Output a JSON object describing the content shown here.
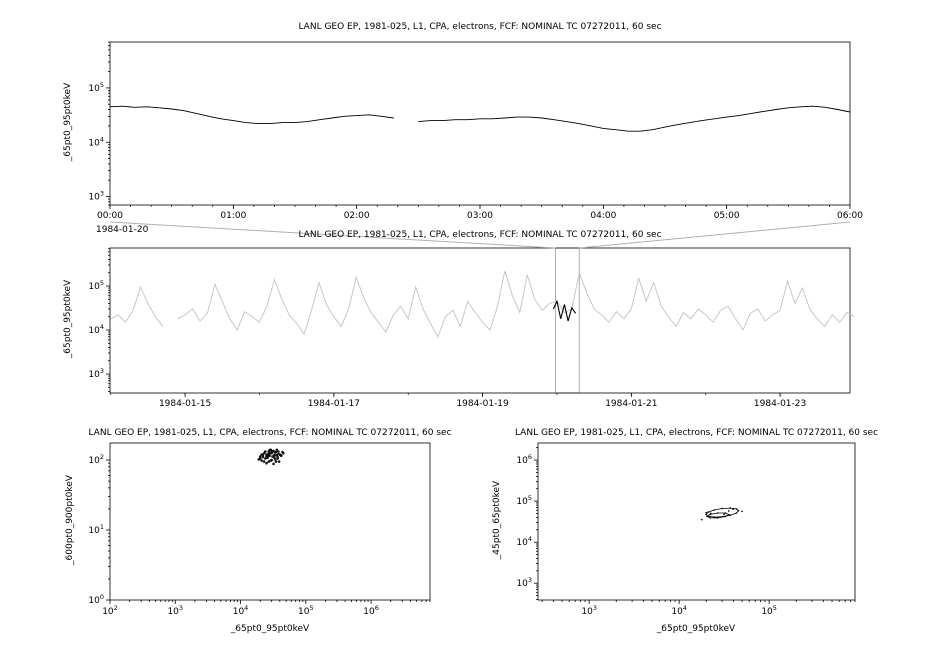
{
  "window": {
    "background": "#ffffff"
  },
  "chart_data": [
    {
      "id": "top-zoom-timeseries",
      "type": "line",
      "title": "LANL GEO EP, 1981-025, L1, CPA, electrons, FCF: NOMINAL TC 07272011, 60 sec",
      "ylabel": "_65pt0_95pt0keV",
      "x_date_label": "1984-01-20",
      "x_unit": "hours",
      "xlim": [
        0,
        6
      ],
      "ylog": true,
      "ylim": [
        700,
        700000
      ],
      "y_tick_exponents": [
        3,
        4,
        5
      ],
      "x_ticks": [
        {
          "v": 0,
          "label": "00:00"
        },
        {
          "v": 1,
          "label": "01:00"
        },
        {
          "v": 2,
          "label": "02:00"
        },
        {
          "v": 3,
          "label": "03:00"
        },
        {
          "v": 4,
          "label": "04:00"
        },
        {
          "v": 5,
          "label": "05:00"
        },
        {
          "v": 6,
          "label": "06:00"
        }
      ],
      "x_minor_step": 0.1666667,
      "series_color": "#000000",
      "x_start": 0,
      "x_step": 0.1,
      "values": [
        45000,
        46000,
        44000,
        45000,
        43000,
        41000,
        38000,
        34000,
        30000,
        27000,
        25000,
        23000,
        22000,
        22000,
        23000,
        23000,
        24000,
        26000,
        28000,
        30000,
        31000,
        32000,
        30000,
        28000,
        null,
        24000,
        25000,
        25000,
        26000,
        26000,
        27000,
        27000,
        28000,
        29000,
        29000,
        28000,
        26000,
        24000,
        22000,
        20000,
        18000,
        17000,
        16000,
        16000,
        17000,
        19000,
        21000,
        23000,
        25000,
        27000,
        29000,
        31000,
        34000,
        37000,
        40000,
        43000,
        45000,
        46000,
        44000,
        40000,
        36000
      ]
    },
    {
      "id": "context-timeseries",
      "type": "line",
      "title": "LANL GEO EP, 1981-025, L1, CPA, electrons, FCF: NOMINAL TC 07272011, 60 sec",
      "ylabel": "_65pt0_95pt0keV",
      "x_unit": "days-of-1984-01",
      "xlim": [
        13.99,
        23.94
      ],
      "ylog": true,
      "ylim": [
        370,
        730000
      ],
      "y_tick_exponents": [
        3,
        4,
        5
      ],
      "x_ticks": [
        {
          "v": 15,
          "label": "1984-01-15"
        },
        {
          "v": 17,
          "label": "1984-01-17"
        },
        {
          "v": 19,
          "label": "1984-01-19"
        },
        {
          "v": 21,
          "label": "1984-01-21"
        },
        {
          "v": 23,
          "label": "1984-01-23"
        }
      ],
      "x_minor_step": 1,
      "series_color": "#c2c2c2",
      "box_color": "#b0b0b0",
      "zoom_box_x": [
        19.98,
        20.3
      ],
      "x_start": 14.0,
      "x_step": 0.1,
      "values": [
        18000,
        22000,
        15000,
        28000,
        95000,
        40000,
        20000,
        12000,
        null,
        18000,
        22000,
        30000,
        16000,
        24000,
        110000,
        45000,
        18000,
        10000,
        26000,
        20000,
        15000,
        35000,
        140000,
        50000,
        22000,
        14000,
        8000,
        28000,
        120000,
        38000,
        20000,
        12000,
        30000,
        160000,
        55000,
        25000,
        15000,
        9000,
        22000,
        35000,
        18000,
        95000,
        30000,
        14000,
        7000,
        20000,
        28000,
        12000,
        45000,
        25000,
        15000,
        10000,
        35000,
        220000,
        60000,
        25000,
        180000,
        50000,
        28000,
        40000,
        45000,
        25000,
        30000,
        200000,
        70000,
        30000,
        22000,
        15000,
        26000,
        18000,
        30000,
        150000,
        45000,
        120000,
        35000,
        20000,
        12000,
        25000,
        18000,
        30000,
        22000,
        15000,
        28000,
        35000,
        18000,
        10000,
        24000,
        30000,
        16000,
        22000,
        28000,
        130000,
        40000,
        90000,
        30000,
        18000,
        12000,
        22000,
        15000,
        25000,
        20000
      ],
      "highlight": {
        "color": "#000000",
        "x": [
          19.95,
          20.0,
          20.05,
          20.1,
          20.15,
          20.2,
          20.25
        ],
        "values": [
          30000,
          45000,
          18000,
          38000,
          16000,
          32000,
          24000
        ]
      }
    },
    {
      "id": "scatter-600-900-vs-65-95",
      "type": "scatter",
      "title": "LANL GEO EP, 1981-025, L1, CPA, electrons, FCF: NOMINAL TC 07272011, 60 sec",
      "xlabel": "_65pt0_95pt0keV",
      "ylabel": "_600pt0_900pt0keV",
      "xlog": true,
      "ylog": true,
      "xlim": [
        100,
        8000000
      ],
      "ylim": [
        1,
        175
      ],
      "x_tick_exponents": [
        2,
        3,
        4,
        5,
        6
      ],
      "y_tick_exponents": [
        0,
        1,
        2
      ],
      "dot_r": 1.3,
      "points": [
        [
          20000,
          105
        ],
        [
          22000,
          110
        ],
        [
          25000,
          120
        ],
        [
          28000,
          115
        ],
        [
          30000,
          125
        ],
        [
          33000,
          118
        ],
        [
          35000,
          130
        ],
        [
          38000,
          122
        ],
        [
          26000,
          108
        ],
        [
          24000,
          132
        ],
        [
          21000,
          98
        ],
        [
          29000,
          140
        ],
        [
          31000,
          112
        ],
        [
          27000,
          95
        ],
        [
          34000,
          128
        ],
        [
          36000,
          118
        ],
        [
          23000,
          125
        ],
        [
          32000,
          135
        ],
        [
          37000,
          110
        ],
        [
          40000,
          120
        ],
        [
          19000,
          102
        ],
        [
          42000,
          115
        ],
        [
          30000,
          100
        ],
        [
          28000,
          138
        ],
        [
          25000,
          90
        ],
        [
          33000,
          108
        ],
        [
          45000,
          125
        ],
        [
          22000,
          118
        ],
        [
          35000,
          95
        ],
        [
          27000,
          122
        ],
        [
          31000,
          130
        ],
        [
          24000,
          105
        ],
        [
          38000,
          132
        ],
        [
          29000,
          98
        ],
        [
          26000,
          115
        ],
        [
          36000,
          140
        ],
        [
          20000,
          112
        ],
        [
          34000,
          102
        ],
        [
          41000,
          118
        ],
        [
          23000,
          95
        ],
        [
          28000,
          125
        ],
        [
          32000,
          88
        ],
        [
          30000,
          135
        ],
        [
          25000,
          112
        ],
        [
          37000,
          105
        ],
        [
          44000,
          130
        ],
        [
          21000,
          120
        ],
        [
          39000,
          95
        ],
        [
          27000,
          132
        ],
        [
          33000,
          115
        ]
      ]
    },
    {
      "id": "scatter-45-65-vs-65-95",
      "type": "scatter",
      "title": "LANL GEO EP, 1981-025, L1, CPA, electrons, FCF: NOMINAL TC 07272011, 60 sec",
      "xlabel": "_65pt0_95pt0keV",
      "ylabel": "_45pt0_65pt0keV",
      "xlog": true,
      "ylog": true,
      "xlim": [
        270,
        900000
      ],
      "ylim": [
        390,
        2600000
      ],
      "x_tick_exponents": [
        3,
        4,
        5
      ],
      "y_tick_exponents": [
        3,
        4,
        5,
        6
      ],
      "dot_r": 0.9,
      "loops": [
        [
          [
            45700,
            58200
          ],
          [
            43250,
            64400
          ],
          [
            37150,
            67450
          ],
          [
            30200,
            66000
          ],
          [
            24550,
            60800
          ],
          [
            21100,
            53800
          ],
          [
            19950,
            47300
          ],
          [
            21100,
            42750
          ],
          [
            24550,
            40850
          ],
          [
            30200,
            41700
          ],
          [
            37150,
            45300
          ],
          [
            43250,
            51200
          ]
        ],
        [
          [
            35500,
            47200
          ],
          [
            32700,
            51200
          ],
          [
            26900,
            51300
          ],
          [
            22100,
            47300
          ],
          [
            20400,
            42300
          ],
          [
            22100,
            39000
          ],
          [
            26900,
            38900
          ],
          [
            32700,
            42200
          ]
        ]
      ],
      "points": [
        [
          17800,
          35500
        ],
        [
          50100,
          56200
        ],
        [
          39800,
          63100
        ],
        [
          22400,
          50100
        ],
        [
          31600,
          47900
        ],
        [
          35500,
          57500
        ],
        [
          25100,
          39800
        ],
        [
          20000,
          52500
        ]
      ]
    }
  ]
}
